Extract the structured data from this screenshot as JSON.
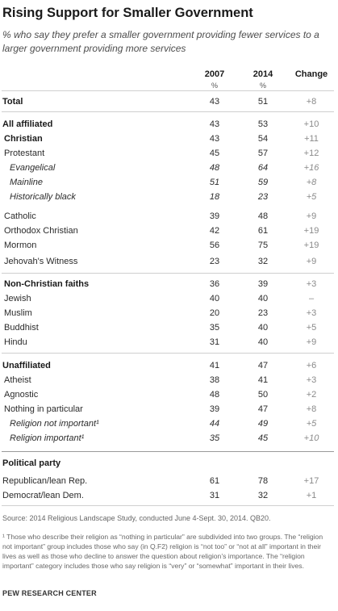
{
  "title": "Rising Support for Smaller Government",
  "subtitle": "% who say they prefer a smaller government providing fewer services to a larger government providing more services",
  "chart_data": {
    "type": "table",
    "columns": [
      {
        "label": "2007",
        "unit": "%"
      },
      {
        "label": "2014",
        "unit": "%"
      },
      {
        "label": "Change",
        "unit": ""
      }
    ],
    "rows": [
      {
        "label": "Total",
        "style": "bold",
        "indent": 0,
        "v2007": "43",
        "v2014": "51",
        "change": "+8"
      },
      {
        "label": "All affiliated",
        "style": "bold",
        "indent": 0,
        "v2007": "43",
        "v2014": "53",
        "change": "+10"
      },
      {
        "label": "Christian",
        "style": "bold",
        "indent": 1,
        "v2007": "43",
        "v2014": "54",
        "change": "+11"
      },
      {
        "label": "Protestant",
        "style": "normal",
        "indent": 1,
        "v2007": "45",
        "v2014": "57",
        "change": "+12"
      },
      {
        "label": "Evangelical",
        "style": "italic",
        "indent": 2,
        "v2007": "48",
        "v2014": "64",
        "change": "+16"
      },
      {
        "label": "Mainline",
        "style": "italic",
        "indent": 2,
        "v2007": "51",
        "v2014": "59",
        "change": "+8"
      },
      {
        "label": "Historically black",
        "style": "italic",
        "indent": 2,
        "v2007": "18",
        "v2014": "23",
        "change": "+5"
      },
      {
        "label": "Catholic",
        "style": "normal",
        "indent": 1,
        "v2007": "39",
        "v2014": "48",
        "change": "+9"
      },
      {
        "label": "Orthodox Christian",
        "style": "normal",
        "indent": 1,
        "v2007": "42",
        "v2014": "61",
        "change": "+19"
      },
      {
        "label": "Mormon",
        "style": "normal",
        "indent": 1,
        "v2007": "56",
        "v2014": "75",
        "change": "+19"
      },
      {
        "label": "Jehovah's Witness",
        "style": "normal",
        "indent": 1,
        "v2007": "23",
        "v2014": "32",
        "change": "+9"
      },
      {
        "label": "Non-Christian faiths",
        "style": "bold",
        "indent": 1,
        "v2007": "36",
        "v2014": "39",
        "change": "+3"
      },
      {
        "label": "Jewish",
        "style": "normal",
        "indent": 1,
        "v2007": "40",
        "v2014": "40",
        "change": "–"
      },
      {
        "label": "Muslim",
        "style": "normal",
        "indent": 1,
        "v2007": "20",
        "v2014": "23",
        "change": "+3"
      },
      {
        "label": "Buddhist",
        "style": "normal",
        "indent": 1,
        "v2007": "35",
        "v2014": "40",
        "change": "+5"
      },
      {
        "label": "Hindu",
        "style": "normal",
        "indent": 1,
        "v2007": "31",
        "v2014": "40",
        "change": "+9"
      },
      {
        "label": "Unaffiliated",
        "style": "bold",
        "indent": 0,
        "v2007": "41",
        "v2014": "47",
        "change": "+6"
      },
      {
        "label": "Atheist",
        "style": "normal",
        "indent": 1,
        "v2007": "38",
        "v2014": "41",
        "change": "+3"
      },
      {
        "label": "Agnostic",
        "style": "normal",
        "indent": 1,
        "v2007": "48",
        "v2014": "50",
        "change": "+2"
      },
      {
        "label": "Nothing in particular",
        "style": "normal",
        "indent": 1,
        "v2007": "39",
        "v2014": "47",
        "change": "+8"
      },
      {
        "label": "Religion not important¹",
        "style": "italic",
        "indent": 2,
        "v2007": "44",
        "v2014": "49",
        "change": "+5"
      },
      {
        "label": "Religion important¹",
        "style": "italic",
        "indent": 2,
        "v2007": "35",
        "v2014": "45",
        "change": "+10"
      },
      {
        "label": "Political party",
        "style": "bold",
        "indent": 0,
        "v2007": "",
        "v2014": "",
        "change": ""
      },
      {
        "label": "Republican/lean Rep.",
        "style": "normal",
        "indent": 0,
        "v2007": "61",
        "v2014": "78",
        "change": "+17"
      },
      {
        "label": "Democrat/lean Dem.",
        "style": "normal",
        "indent": 0,
        "v2007": "31",
        "v2014": "32",
        "change": "+1"
      }
    ]
  },
  "source": "Source: 2014 Religious Landscape Study, conducted June 4-Sept. 30, 2014. QB20.",
  "footnote": "¹ Those who describe their religion as “nothing in particular” are subdivided into two groups. The “religion not important” group includes those who say (in Q.F2) religion is “not too” or “not at all” important in their lives as well as those who decline to answer the question about religion’s importance. The “religion important” category includes those who say religion is “very” or “somewhat” important in their lives.",
  "credit": "PEW RESEARCH CENTER"
}
